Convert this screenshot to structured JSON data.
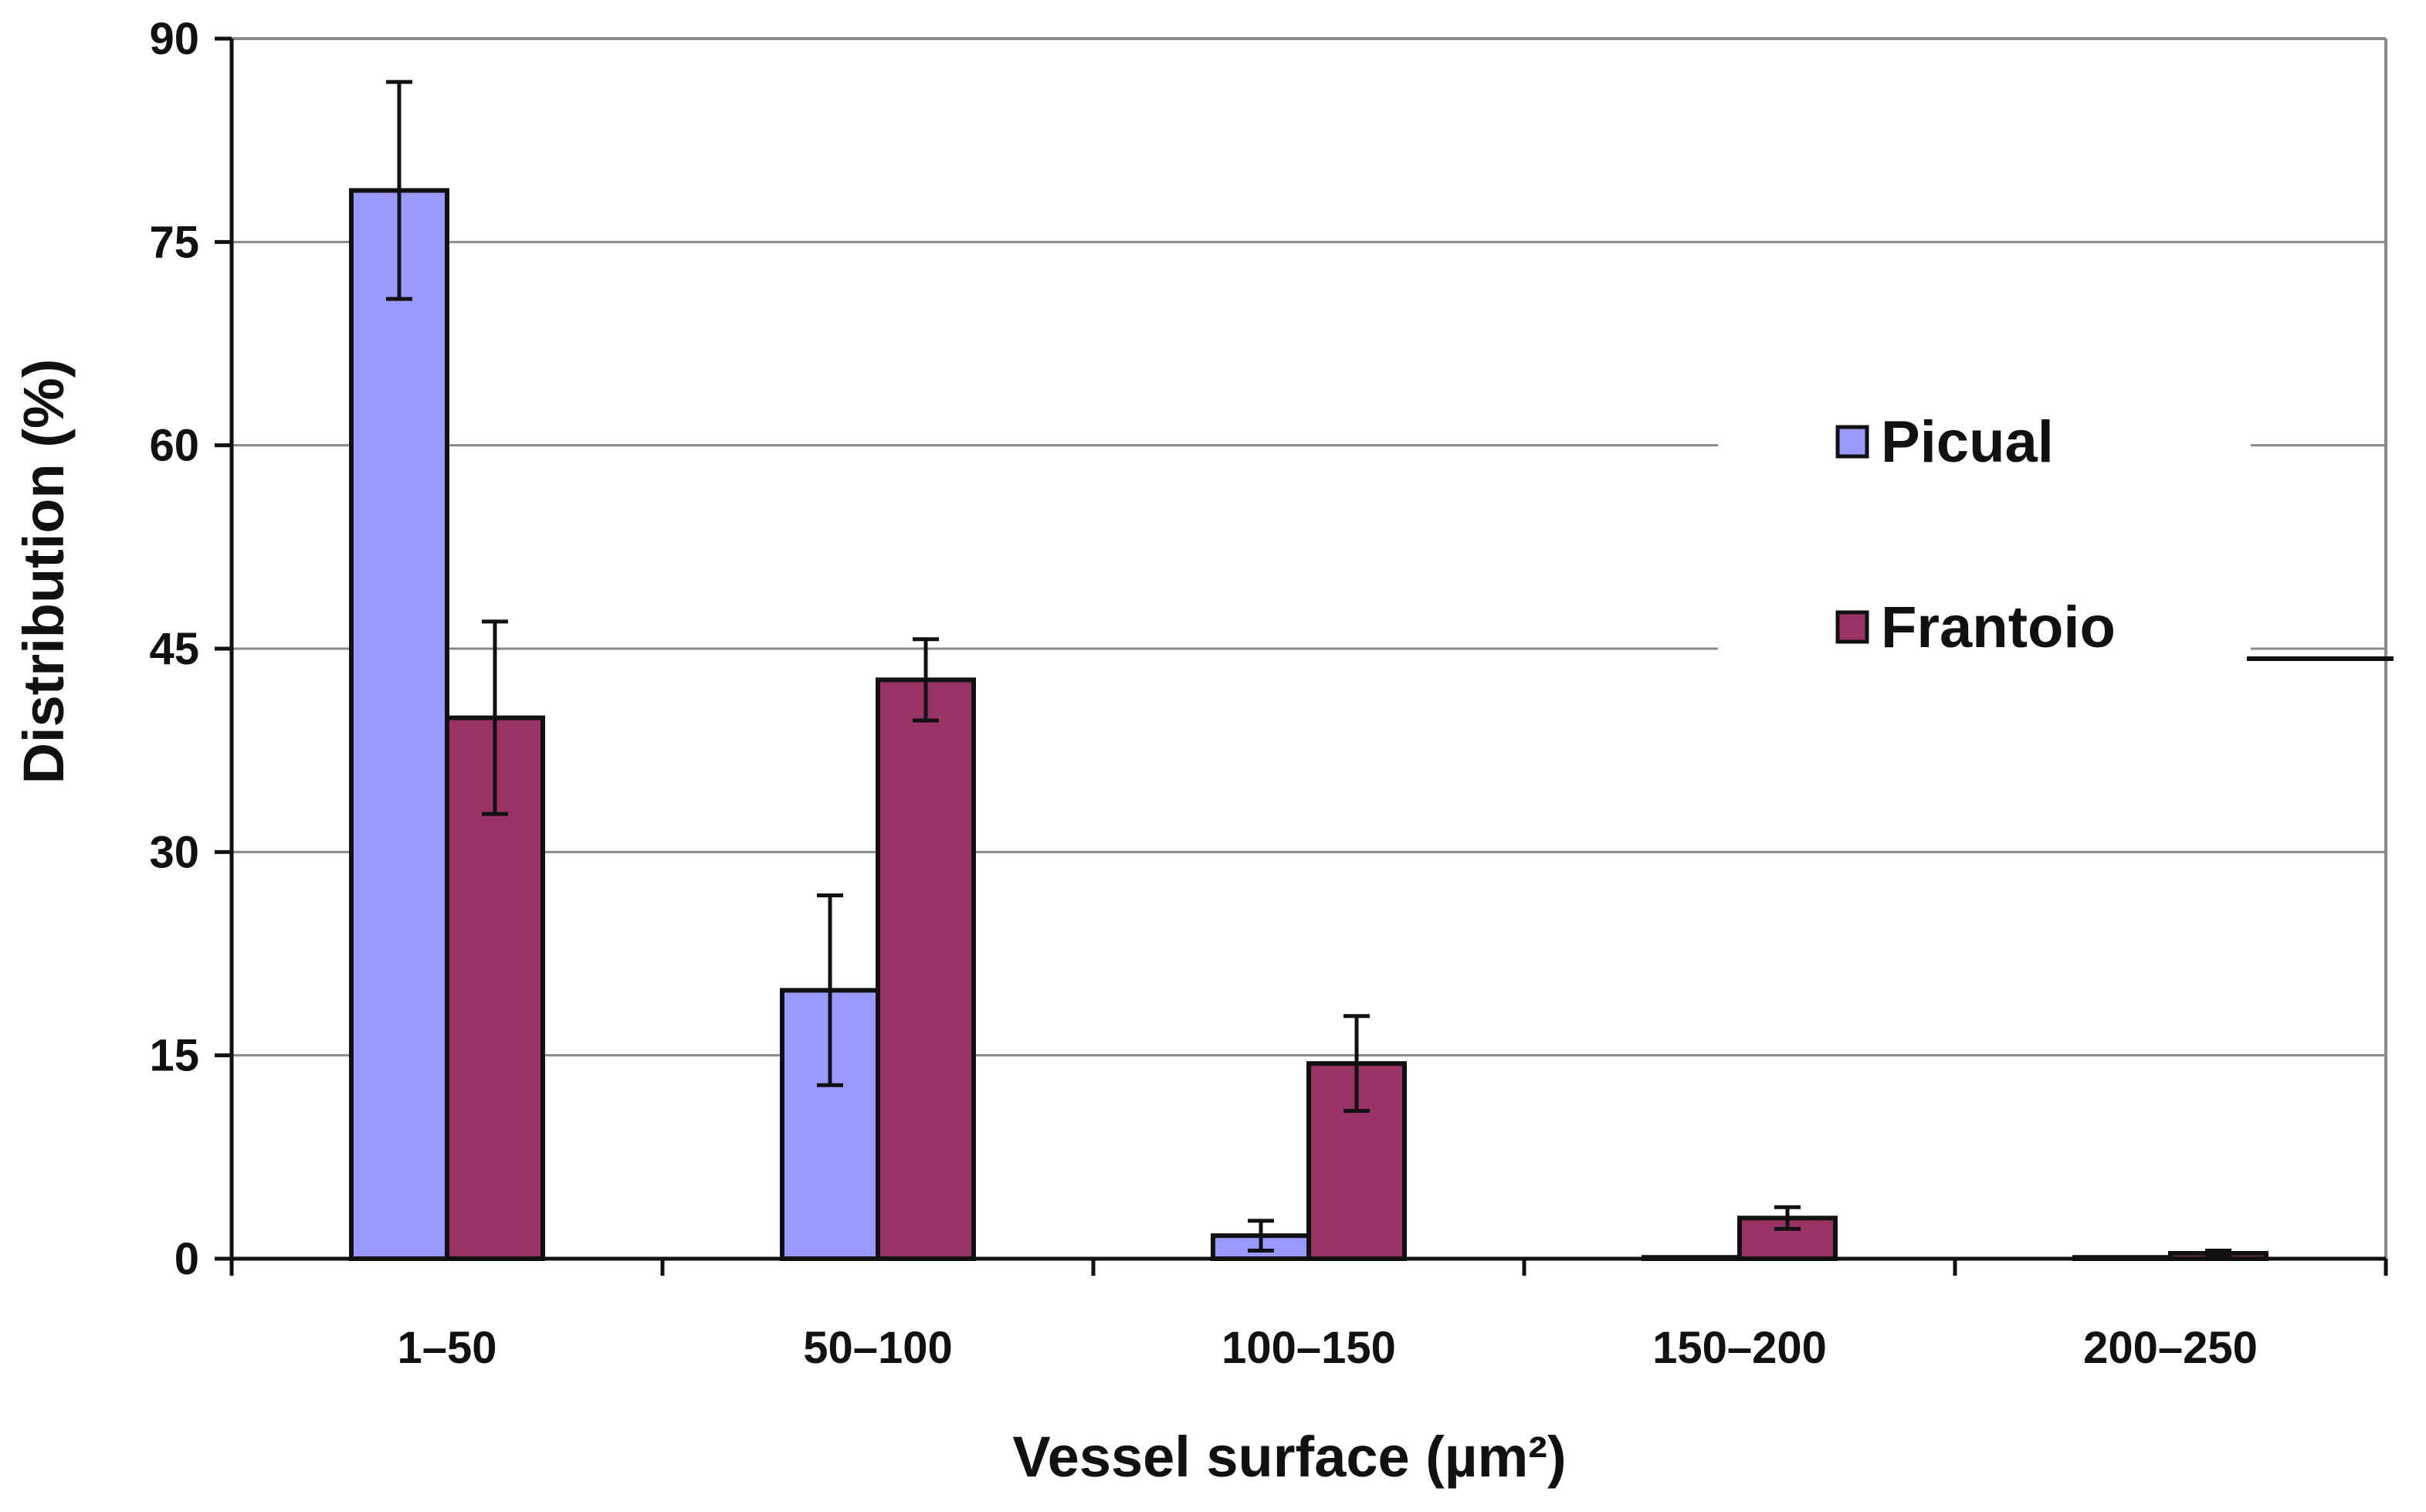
{
  "chart_data": {
    "type": "bar",
    "title": "",
    "xlabel": "Vessel surface (µm²)",
    "ylabel": "Distribution (%)",
    "ylim": [
      0,
      90
    ],
    "yticks": [
      "0",
      "15",
      "30",
      "45",
      "60",
      "75",
      "90"
    ],
    "yticks_values": [
      0,
      15,
      30,
      45,
      60,
      75,
      90
    ],
    "grid": true,
    "legend_position": "right",
    "categories": [
      "1–50",
      "50–100",
      "100–150",
      "150–200",
      "200–250"
    ],
    "series": [
      {
        "name": "Picual",
        "color": "#9999ff",
        "values": [
          78.8,
          19.8,
          1.7,
          0.1,
          0.1
        ],
        "errors": [
          8.0,
          7.0,
          1.1,
          0,
          0
        ]
      },
      {
        "name": "Frantoio",
        "color": "#993366",
        "values": [
          39.9,
          42.7,
          14.4,
          3.0,
          0.4
        ],
        "errors": [
          7.1,
          3.0,
          3.5,
          0.8,
          0.2
        ]
      }
    ]
  }
}
